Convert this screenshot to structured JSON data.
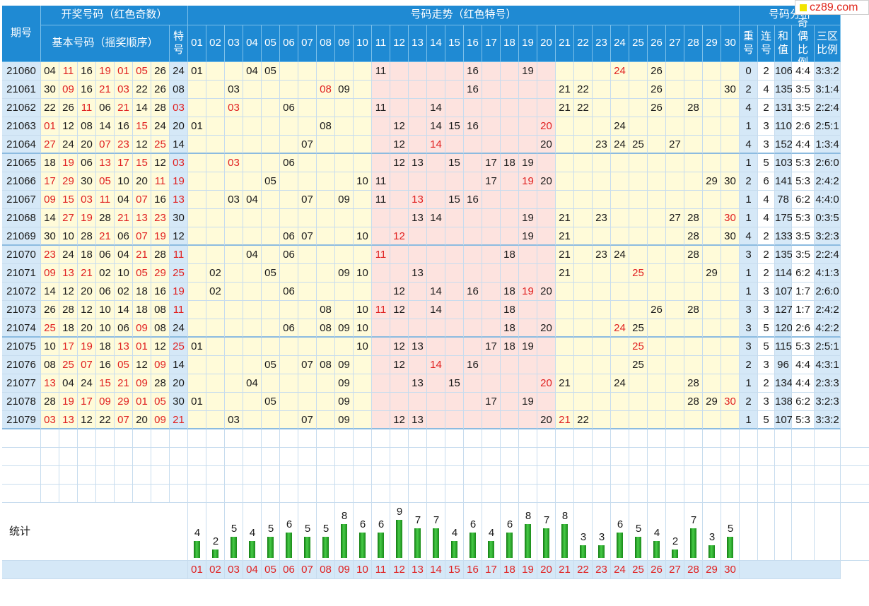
{
  "header": {
    "issue_label": "期号",
    "draw_title": "开奖号码（红色奇数）",
    "trend_title": "号码走势（红色特号）",
    "analysis_title": "号码分析",
    "basic_label": "基本号码（摇奖顺序）",
    "special_label": "特号",
    "analysis_cols": [
      "重号",
      "连号",
      "和值",
      "奇偶比例",
      "三区比例"
    ],
    "number_cols": [
      "01",
      "02",
      "03",
      "04",
      "05",
      "06",
      "07",
      "08",
      "09",
      "10",
      "11",
      "12",
      "13",
      "14",
      "15",
      "16",
      "17",
      "18",
      "19",
      "20",
      "21",
      "22",
      "23",
      "24",
      "25",
      "26",
      "27",
      "28",
      "29",
      "30"
    ]
  },
  "watermark": "cz89.com",
  "stats_label": "统计",
  "chart_data": {
    "type": "table",
    "rows": [
      {
        "issue": "21060",
        "basic": [
          "04",
          "11",
          "16",
          "19",
          "01",
          "05",
          "26"
        ],
        "special": "24",
        "repeat": 0,
        "consec": 2,
        "sum": 106,
        "odd_even": "4:4",
        "zone": "3:3:2"
      },
      {
        "issue": "21061",
        "basic": [
          "30",
          "09",
          "16",
          "21",
          "03",
          "22",
          "26"
        ],
        "special": "08",
        "repeat": 2,
        "consec": 4,
        "sum": 135,
        "odd_even": "3:5",
        "zone": "3:1:4"
      },
      {
        "issue": "21062",
        "basic": [
          "22",
          "26",
          "11",
          "06",
          "21",
          "14",
          "28"
        ],
        "special": "03",
        "repeat": 4,
        "consec": 2,
        "sum": 131,
        "odd_even": "3:5",
        "zone": "2:2:4"
      },
      {
        "issue": "21063",
        "basic": [
          "01",
          "12",
          "08",
          "14",
          "16",
          "15",
          "24"
        ],
        "special": "20",
        "repeat": 1,
        "consec": 3,
        "sum": 110,
        "odd_even": "2:6",
        "zone": "2:5:1"
      },
      {
        "issue": "21064",
        "basic": [
          "27",
          "24",
          "20",
          "07",
          "23",
          "12",
          "25"
        ],
        "special": "14",
        "repeat": 4,
        "consec": 3,
        "sum": 152,
        "odd_even": "4:4",
        "zone": "1:3:4"
      },
      {
        "issue": "21065",
        "basic": [
          "18",
          "19",
          "06",
          "13",
          "17",
          "15",
          "12"
        ],
        "special": "03",
        "repeat": 1,
        "consec": 5,
        "sum": 103,
        "odd_even": "5:3",
        "zone": "2:6:0"
      },
      {
        "issue": "21066",
        "basic": [
          "17",
          "29",
          "30",
          "05",
          "10",
          "20",
          "11"
        ],
        "special": "19",
        "repeat": 2,
        "consec": 6,
        "sum": 141,
        "odd_even": "5:3",
        "zone": "2:4:2"
      },
      {
        "issue": "21067",
        "basic": [
          "09",
          "15",
          "03",
          "11",
          "04",
          "07",
          "16"
        ],
        "special": "13",
        "repeat": 1,
        "consec": 4,
        "sum": 78,
        "odd_even": "6:2",
        "zone": "4:4:0"
      },
      {
        "issue": "21068",
        "basic": [
          "14",
          "27",
          "19",
          "28",
          "21",
          "13",
          "23"
        ],
        "special": "30",
        "repeat": 1,
        "consec": 4,
        "sum": 175,
        "odd_even": "5:3",
        "zone": "0:3:5"
      },
      {
        "issue": "21069",
        "basic": [
          "30",
          "10",
          "28",
          "21",
          "06",
          "07",
          "19"
        ],
        "special": "12",
        "repeat": 4,
        "consec": 2,
        "sum": 133,
        "odd_even": "3:5",
        "zone": "3:2:3"
      },
      {
        "issue": "21070",
        "basic": [
          "23",
          "24",
          "18",
          "06",
          "04",
          "21",
          "28"
        ],
        "special": "11",
        "repeat": 3,
        "consec": 2,
        "sum": 135,
        "odd_even": "3:5",
        "zone": "2:2:4"
      },
      {
        "issue": "21071",
        "basic": [
          "09",
          "13",
          "21",
          "02",
          "10",
          "05",
          "29"
        ],
        "special": "25",
        "repeat": 1,
        "consec": 2,
        "sum": 114,
        "odd_even": "6:2",
        "zone": "4:1:3"
      },
      {
        "issue": "21072",
        "basic": [
          "14",
          "12",
          "20",
          "06",
          "02",
          "18",
          "16"
        ],
        "special": "19",
        "repeat": 1,
        "consec": 3,
        "sum": 107,
        "odd_even": "1:7",
        "zone": "2:6:0"
      },
      {
        "issue": "21073",
        "basic": [
          "26",
          "28",
          "12",
          "10",
          "14",
          "18",
          "08"
        ],
        "special": "11",
        "repeat": 3,
        "consec": 3,
        "sum": 127,
        "odd_even": "1:7",
        "zone": "2:4:2"
      },
      {
        "issue": "21074",
        "basic": [
          "25",
          "18",
          "20",
          "10",
          "06",
          "09",
          "08"
        ],
        "special": "24",
        "repeat": 3,
        "consec": 5,
        "sum": 120,
        "odd_even": "2:6",
        "zone": "4:2:2"
      },
      {
        "issue": "21075",
        "basic": [
          "10",
          "17",
          "19",
          "18",
          "13",
          "01",
          "12"
        ],
        "special": "25",
        "repeat": 3,
        "consec": 5,
        "sum": 115,
        "odd_even": "5:3",
        "zone": "2:5:1"
      },
      {
        "issue": "21076",
        "basic": [
          "08",
          "25",
          "07",
          "16",
          "05",
          "12",
          "09"
        ],
        "special": "14",
        "repeat": 2,
        "consec": 3,
        "sum": 96,
        "odd_even": "4:4",
        "zone": "4:3:1"
      },
      {
        "issue": "21077",
        "basic": [
          "13",
          "04",
          "24",
          "15",
          "21",
          "09",
          "28"
        ],
        "special": "20",
        "repeat": 1,
        "consec": 2,
        "sum": 134,
        "odd_even": "4:4",
        "zone": "2:3:3"
      },
      {
        "issue": "21078",
        "basic": [
          "28",
          "19",
          "17",
          "09",
          "29",
          "01",
          "05"
        ],
        "special": "30",
        "repeat": 2,
        "consec": 3,
        "sum": 138,
        "odd_even": "6:2",
        "zone": "3:2:3"
      },
      {
        "issue": "21079",
        "basic": [
          "03",
          "13",
          "12",
          "22",
          "07",
          "20",
          "09"
        ],
        "special": "21",
        "repeat": 1,
        "consec": 5,
        "sum": 107,
        "odd_even": "5:3",
        "zone": "3:3:2"
      }
    ],
    "stats_counts": [
      4,
      2,
      5,
      4,
      5,
      6,
      5,
      5,
      8,
      6,
      6,
      9,
      7,
      7,
      4,
      6,
      4,
      6,
      8,
      7,
      8,
      3,
      3,
      6,
      5,
      4,
      2,
      7,
      3,
      5
    ],
    "stats_max": 9,
    "colors": {
      "header": "#1f8ad3",
      "yellow": "#fffbd9",
      "pink": "#fde3df",
      "blue": "#d5e8f7",
      "red": "#e02020",
      "bar": "#2aa82a"
    }
  }
}
